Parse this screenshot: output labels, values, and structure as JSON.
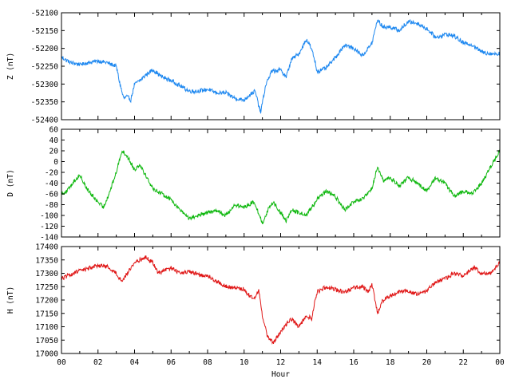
{
  "chart_data": [
    {
      "type": "line",
      "ylabel": "Z (nT)",
      "ylim": [
        -52400,
        -52100
      ],
      "yticks": [
        -52100,
        -52150,
        -52200,
        -52250,
        -52300,
        -52350,
        -52400
      ],
      "xlim": [
        0,
        24
      ],
      "color": "#1e88f0",
      "series": [
        {
          "x": [
            0,
            0.5,
            1,
            1.5,
            2,
            2.5,
            3,
            3.2,
            3.4,
            3.6,
            3.8,
            4,
            4.3,
            4.6,
            5,
            5.5,
            6,
            6.5,
            7,
            7.5,
            8,
            8.5,
            9,
            9.5,
            10,
            10.3,
            10.6,
            10.9,
            11.2,
            11.5,
            12,
            12.3,
            12.6,
            13,
            13.4,
            13.6,
            13.8,
            14,
            14.5,
            15,
            15.5,
            16,
            16.5,
            17,
            17.3,
            17.6,
            18,
            18.5,
            19,
            19.5,
            20,
            20.5,
            21,
            21.5,
            22,
            22.5,
            23,
            23.5,
            24
          ],
          "y": [
            -52225,
            -52240,
            -52245,
            -52240,
            -52235,
            -52240,
            -52250,
            -52300,
            -52340,
            -52335,
            -52345,
            -52300,
            -52290,
            -52275,
            -52260,
            -52280,
            -52290,
            -52305,
            -52320,
            -52320,
            -52315,
            -52325,
            -52325,
            -52340,
            -52345,
            -52330,
            -52320,
            -52380,
            -52300,
            -52265,
            -52260,
            -52280,
            -52230,
            -52215,
            -52175,
            -52190,
            -52220,
            -52265,
            -52255,
            -52225,
            -52190,
            -52200,
            -52220,
            -52185,
            -52120,
            -52140,
            -52140,
            -52150,
            -52125,
            -52130,
            -52145,
            -52170,
            -52160,
            -52165,
            -52185,
            -52190,
            -52210,
            -52215,
            -52215
          ]
        }
      ]
    },
    {
      "type": "line",
      "ylabel": "D (nT)",
      "ylim": [
        -140,
        60
      ],
      "yticks": [
        60,
        40,
        20,
        0,
        -20,
        -40,
        -60,
        -80,
        -100,
        -120,
        -140
      ],
      "xlim": [
        0,
        24
      ],
      "color": "#10b810",
      "series": [
        {
          "x": [
            0,
            0.3,
            0.6,
            1,
            1.3,
            1.6,
            2,
            2.3,
            2.6,
            3,
            3.3,
            3.6,
            4,
            4.3,
            4.6,
            5,
            5.5,
            6,
            6.5,
            7,
            7.5,
            8,
            8.5,
            9,
            9.5,
            10,
            10.5,
            10.8,
            11,
            11.3,
            11.6,
            12,
            12.3,
            12.6,
            13,
            13.4,
            13.8,
            14,
            14.5,
            15,
            15.5,
            16,
            16.5,
            17,
            17.3,
            17.6,
            18,
            18.5,
            19,
            19.5,
            20,
            20.5,
            21,
            21.5,
            22,
            22.5,
            23,
            23.5,
            24
          ],
          "y": [
            -60,
            -55,
            -40,
            -25,
            -45,
            -60,
            -75,
            -85,
            -60,
            -20,
            20,
            10,
            -15,
            -5,
            -25,
            -50,
            -60,
            -70,
            -90,
            -105,
            -100,
            -95,
            -90,
            -100,
            -80,
            -85,
            -75,
            -95,
            -115,
            -90,
            -75,
            -95,
            -110,
            -90,
            -95,
            -100,
            -80,
            -70,
            -55,
            -65,
            -90,
            -75,
            -70,
            -50,
            -10,
            -35,
            -30,
            -45,
            -30,
            -40,
            -55,
            -30,
            -40,
            -65,
            -55,
            -60,
            -40,
            -10,
            20
          ]
        }
      ]
    },
    {
      "type": "line",
      "ylabel": "H (nT)",
      "xlabel": "Hour",
      "ylim": [
        17000,
        17400
      ],
      "yticks": [
        17400,
        17350,
        17300,
        17250,
        17200,
        17150,
        17100,
        17050,
        17000
      ],
      "xlim": [
        0,
        24
      ],
      "color": "#e01818",
      "series": [
        {
          "x": [
            0,
            0.5,
            1,
            1.5,
            2,
            2.5,
            3,
            3.3,
            3.6,
            4,
            4.3,
            4.6,
            5,
            5.3,
            5.6,
            6,
            6.5,
            7,
            7.5,
            8,
            8.5,
            9,
            9.5,
            10,
            10.3,
            10.6,
            10.8,
            11,
            11.3,
            11.6,
            12,
            12.3,
            12.6,
            13,
            13.4,
            13.7,
            13.8,
            14,
            14.5,
            15,
            15.5,
            16,
            16.5,
            16.8,
            17,
            17.3,
            17.6,
            18,
            18.5,
            19,
            19.5,
            20,
            20.5,
            21,
            21.5,
            22,
            22.3,
            22.6,
            23,
            23.5,
            24
          ],
          "y": [
            17280,
            17295,
            17310,
            17320,
            17330,
            17325,
            17300,
            17270,
            17300,
            17340,
            17350,
            17360,
            17340,
            17300,
            17310,
            17320,
            17300,
            17305,
            17295,
            17290,
            17270,
            17250,
            17245,
            17240,
            17215,
            17205,
            17240,
            17140,
            17060,
            17040,
            17080,
            17110,
            17130,
            17100,
            17140,
            17130,
            17170,
            17230,
            17250,
            17240,
            17230,
            17245,
            17250,
            17230,
            17260,
            17150,
            17200,
            17215,
            17230,
            17235,
            17220,
            17235,
            17265,
            17280,
            17300,
            17290,
            17310,
            17320,
            17300,
            17300,
            17340
          ]
        }
      ]
    }
  ],
  "x_tick_labels": [
    "00",
    "02",
    "04",
    "06",
    "08",
    "10",
    "12",
    "14",
    "16",
    "18",
    "20",
    "22",
    "00"
  ]
}
